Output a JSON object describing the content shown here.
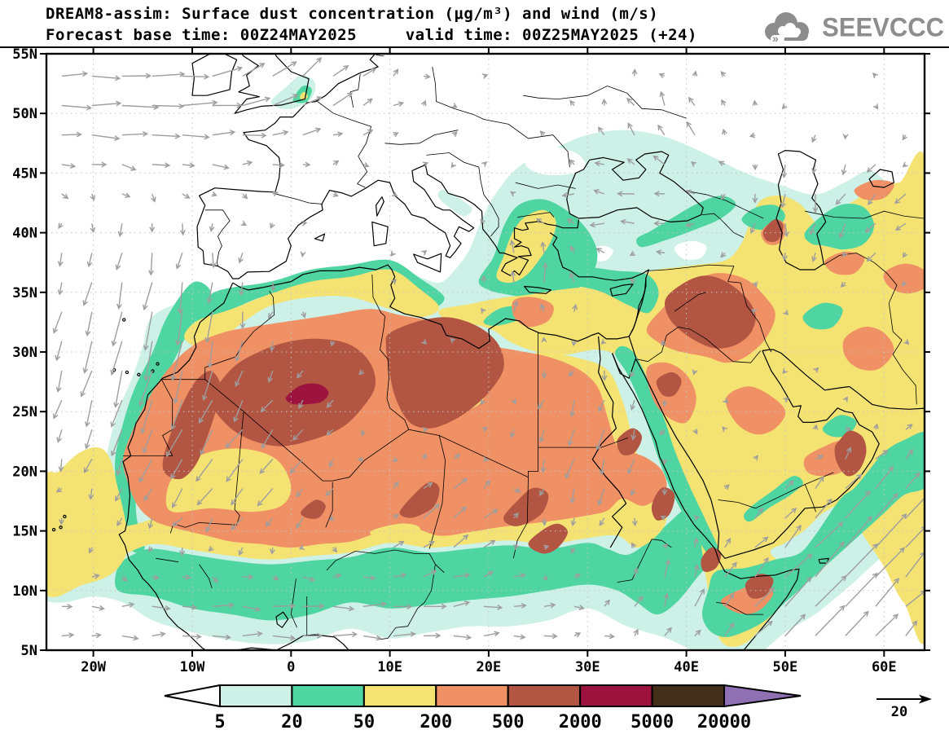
{
  "header": {
    "title": "DREAM8-assim: Surface dust concentration (μg/m³) and wind (m/s)",
    "subtitle": "Forecast base time: 00Z24MAY2025     valid time: 00Z25MAY2025 (+24)"
  },
  "logo": {
    "text": "SEEVCCC"
  },
  "axes": {
    "lat_labels": [
      "55N",
      "50N",
      "45N",
      "40N",
      "35N",
      "30N",
      "25N",
      "20N",
      "15N",
      "10N",
      "5N"
    ],
    "lon_labels": [
      "20W",
      "10W",
      "0",
      "10E",
      "20E",
      "30E",
      "40E",
      "50E",
      "60E"
    ]
  },
  "legend": {
    "values": [
      "5",
      "20",
      "50",
      "200",
      "500",
      "2000",
      "5000",
      "20000"
    ],
    "segment_colors": [
      "#cdf1e7",
      "#4fd5a2",
      "#f4e372",
      "#ef9065",
      "#b25542",
      "#9c1340",
      "#442f1b"
    ],
    "below_color": "#ffffff",
    "above_color": "#8f70b3"
  },
  "wind_ref": {
    "label": "20"
  },
  "colors": {
    "wind_arrow": "#9e9e9e",
    "coastline": "#000000",
    "gridline": "#c4c4c4",
    "logo_gray": "#8d8d8d"
  },
  "chart_data": {
    "type": "heatmap",
    "title": "DREAM8-assim: Surface dust concentration (μg/m³) and wind (m/s)",
    "subtitle": "Forecast base time: 00Z24MAY2025  valid time: 00Z25MAY2025 (+24)",
    "units": "μg/m³",
    "contour_levels": [
      5,
      20,
      50,
      200,
      500,
      2000,
      5000,
      20000
    ],
    "level_colors": [
      "#ffffff",
      "#cdf1e7",
      "#4fd5a2",
      "#f4e372",
      "#ef9065",
      "#b25542",
      "#9c1340",
      "#442f1b",
      "#8f70b3"
    ],
    "wind_reference_ms": 20,
    "lon_range": [
      -24.75,
      64.1
    ],
    "lat_range": [
      5,
      55
    ],
    "lat_ticks": [
      55,
      50,
      45,
      40,
      35,
      30,
      25,
      20,
      15,
      10,
      5
    ],
    "lon_ticks": [
      -20,
      -10,
      0,
      10,
      20,
      30,
      40,
      50,
      60
    ],
    "notes": "Dust maxima >2000 over central Algeria/Mali (core >5000 near 1E,26.5N), Niger/Libya, Iraq/Syria, Oman; 200-500 over most of Sahara and Middle East; 5-50 band over Sahel, eastern Mediterranean, Black Sea, Caspian, Somali coast"
  }
}
